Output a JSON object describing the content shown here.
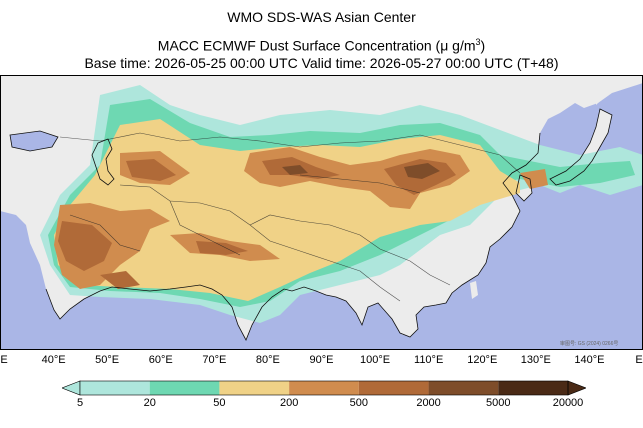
{
  "header": {
    "line1": "WMO SDS-WAS Asian Center",
    "line2_prefix": "MACC ECMWF Dust Surface Concentration (",
    "line2_unit": "μ g/m",
    "line2_exp": "3",
    "line2_suffix": ")",
    "line3": "Base time: 2026-05-25 00:00 UTC Valid time: 2026-05-27 00:00 UTC (T+48)"
  },
  "map": {
    "longitude_ticks": [
      "E",
      "40°E",
      "50°E",
      "60°E",
      "70°E",
      "80°E",
      "90°E",
      "100°E",
      "110°E",
      "120°E",
      "130°E",
      "140°E",
      "E"
    ],
    "attribution": "审图号: GS (2024) 0266号",
    "colors": {
      "ocean": "#aab6e6",
      "land": "#ececec"
    }
  },
  "chart_data": {
    "type": "heatmap",
    "variable": "Dust Surface Concentration",
    "unit": "μg/m3",
    "xlim_deg_east": [
      30,
      150
    ],
    "levels": [
      5,
      20,
      50,
      200,
      500,
      2000,
      5000,
      20000
    ],
    "level_labels": [
      "5",
      "20",
      "50",
      "200",
      "500",
      "2000",
      "5000",
      "20000"
    ],
    "colors": [
      "#aee6dc",
      "#6ed8b2",
      "#f0d287",
      "#d08c4e",
      "#b06a38",
      "#7e4d2a",
      "#4a2a16"
    ],
    "extend": "both"
  }
}
